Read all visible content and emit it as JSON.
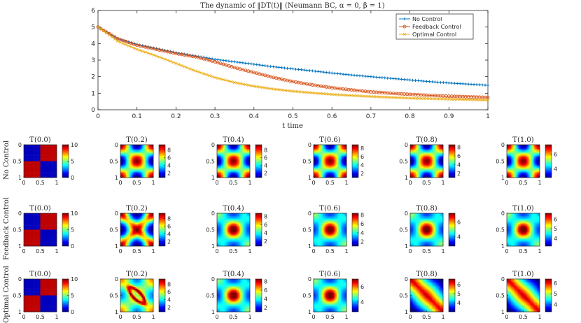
{
  "chart_data": [
    {
      "type": "line",
      "title": "The dynamic of ‖DT(t)‖ (Neumann BC, α = 0, β = 1)",
      "xlabel": "t time",
      "ylabel": "",
      "xlim": [
        0,
        1
      ],
      "ylim": [
        0,
        6
      ],
      "x_ticks": [
        "0",
        "0.1",
        "0.2",
        "0.3",
        "0.4",
        "0.5",
        "0.6",
        "0.7",
        "0.8",
        "0.9",
        "1"
      ],
      "y_ticks": [
        "0",
        "1",
        "2",
        "3",
        "4",
        "5",
        "6"
      ],
      "legend_position": "top-right",
      "series": [
        {
          "name": "No Control",
          "color": "#0072BD",
          "marker": "plus",
          "x": [
            0,
            0.05,
            0.1,
            0.15,
            0.2,
            0.25,
            0.3,
            0.35,
            0.4,
            0.45,
            0.5,
            0.55,
            0.6,
            0.65,
            0.7,
            0.75,
            0.8,
            0.85,
            0.9,
            0.95,
            1.0
          ],
          "values": [
            5.0,
            4.3,
            3.95,
            3.7,
            3.45,
            3.25,
            3.05,
            2.9,
            2.75,
            2.6,
            2.47,
            2.35,
            2.22,
            2.1,
            2.0,
            1.9,
            1.8,
            1.7,
            1.62,
            1.55,
            1.48
          ]
        },
        {
          "name": "Feedback Control",
          "color": "#D95319",
          "marker": "circle",
          "x": [
            0,
            0.05,
            0.1,
            0.15,
            0.2,
            0.25,
            0.3,
            0.35,
            0.4,
            0.45,
            0.5,
            0.55,
            0.6,
            0.65,
            0.7,
            0.75,
            0.8,
            0.85,
            0.9,
            0.95,
            1.0
          ],
          "values": [
            5.0,
            4.3,
            3.9,
            3.65,
            3.4,
            3.2,
            2.9,
            2.55,
            2.25,
            1.95,
            1.7,
            1.5,
            1.33,
            1.2,
            1.08,
            1.0,
            0.93,
            0.87,
            0.82,
            0.78,
            0.75
          ]
        },
        {
          "name": "Optimal Control",
          "color": "#EDB120",
          "marker": "x",
          "x": [
            0,
            0.05,
            0.1,
            0.15,
            0.2,
            0.25,
            0.3,
            0.35,
            0.4,
            0.45,
            0.5,
            0.55,
            0.6,
            0.65,
            0.7,
            0.75,
            0.8,
            0.85,
            0.9,
            0.95,
            1.0
          ],
          "values": [
            5.0,
            4.15,
            3.65,
            3.25,
            2.8,
            2.35,
            1.95,
            1.65,
            1.42,
            1.25,
            1.12,
            1.02,
            0.93,
            0.86,
            0.8,
            0.75,
            0.7,
            0.67,
            0.64,
            0.61,
            0.58
          ]
        }
      ]
    },
    {
      "type": "heatmap",
      "description": "grid of temperature snapshots",
      "rows": [
        {
          "label": "No Control",
          "kinds": [
            "check",
            "cross",
            "cross",
            "cross",
            "cross",
            "cross"
          ],
          "cbar_ticks": [
            [
              "0",
              "5",
              "10"
            ],
            [
              "2",
              "4",
              "6",
              "8"
            ],
            [
              "2",
              "4",
              "6",
              "8"
            ],
            [
              "2",
              "4",
              "6",
              "8"
            ],
            [
              "2",
              "4",
              "6",
              "8"
            ],
            [
              "4",
              "6"
            ]
          ],
          "cbar_ranges": [
            [
              0,
              10
            ],
            [
              0.8,
              9.4
            ],
            [
              0.8,
              9.4
            ],
            [
              1.0,
              8.8
            ],
            [
              1.0,
              8.6
            ],
            [
              2.8,
              7.3
            ]
          ]
        },
        {
          "label": "Feedback Control",
          "kinds": [
            "check",
            "band",
            "blob",
            "blob",
            "blob",
            "blob"
          ],
          "cbar_ticks": [
            [
              "0",
              "5",
              "10"
            ],
            [
              "2",
              "4",
              "6",
              "8"
            ],
            [
              "2",
              "4",
              "6",
              "8"
            ],
            [
              "2",
              "4",
              "6",
              "8"
            ],
            [
              "4",
              "6"
            ],
            [
              "4",
              "5",
              "6"
            ]
          ],
          "cbar_ranges": [
            [
              0,
              10
            ],
            [
              0.8,
              9.4
            ],
            [
              0.8,
              8.8
            ],
            [
              1.0,
              8.4
            ],
            [
              2.7,
              7.2
            ],
            [
              3.2,
              6.6
            ]
          ]
        },
        {
          "label": "Optimal Control",
          "kinds": [
            "check",
            "ring",
            "blob",
            "blob",
            "diag",
            "diag"
          ],
          "cbar_ticks": [
            [
              "0",
              "5",
              "10"
            ],
            [
              "2",
              "4",
              "6",
              "8"
            ],
            [
              "2",
              "4",
              "6",
              "8"
            ],
            [
              "4",
              "6"
            ],
            [
              "4",
              "5",
              "6"
            ],
            [
              "4",
              "5",
              "6"
            ]
          ],
          "cbar_ranges": [
            [
              0,
              10
            ],
            [
              0.8,
              9.4
            ],
            [
              1.0,
              8.6
            ],
            [
              2.7,
              7.0
            ],
            [
              3.0,
              6.6
            ],
            [
              3.3,
              6.4
            ]
          ]
        }
      ],
      "column_titles": [
        "T(0.0)",
        "T(0.2)",
        "T(0.4)",
        "T(0.6)",
        "T(0.8)",
        "T(1.0)"
      ],
      "axis_ticks": [
        "0",
        "0.5",
        "1"
      ]
    }
  ]
}
